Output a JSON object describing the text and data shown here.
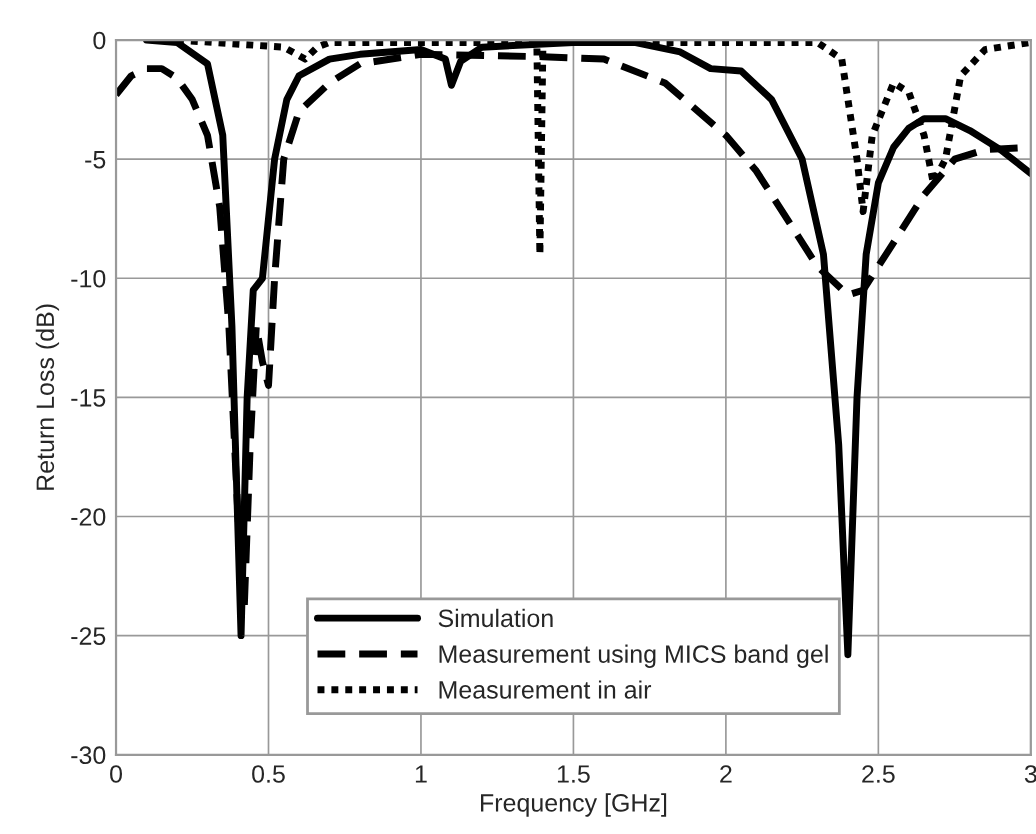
{
  "chart_data": {
    "type": "line",
    "xlabel": "Frequency [GHz]",
    "ylabel": "Return Loss (dB)",
    "xlim": [
      0,
      3
    ],
    "ylim": [
      -30,
      0
    ],
    "xticks": [
      0,
      0.5,
      1,
      1.5,
      2,
      2.5,
      3
    ],
    "yticks": [
      -30,
      -25,
      -20,
      -15,
      -10,
      -5,
      0
    ],
    "grid": true,
    "legend": "bottom",
    "series": [
      {
        "name": "Simulation",
        "color": "#000000",
        "line_style": "solid",
        "x": [
          0.1,
          0.2,
          0.3,
          0.35,
          0.38,
          0.41,
          0.43,
          0.45,
          0.48,
          0.52,
          0.56,
          0.6,
          0.7,
          0.8,
          1.0,
          1.08,
          1.1,
          1.13,
          1.2,
          1.5,
          1.7,
          1.85,
          1.95,
          2.05,
          2.15,
          2.25,
          2.32,
          2.37,
          2.4,
          2.43,
          2.46,
          2.5,
          2.55,
          2.6,
          2.65,
          2.72,
          2.8,
          2.9,
          3.0
        ],
        "values": [
          0,
          -0.1,
          -1,
          -4,
          -12,
          -25,
          -15,
          -10.5,
          -10,
          -5,
          -2.5,
          -1.5,
          -0.8,
          -0.6,
          -0.4,
          -0.8,
          -1.9,
          -0.9,
          -0.3,
          -0.1,
          -0.1,
          -0.5,
          -1.2,
          -1.3,
          -2.5,
          -5,
          -9,
          -17,
          -25.8,
          -15,
          -9,
          -6,
          -4.5,
          -3.7,
          -3.3,
          -3.3,
          -3.8,
          -4.6,
          -5.6
        ]
      },
      {
        "name": "Measurement using MICS band gel",
        "color": "#000000",
        "line_style": "dashed",
        "x": [
          0,
          0.05,
          0.1,
          0.15,
          0.2,
          0.25,
          0.3,
          0.34,
          0.37,
          0.4,
          0.42,
          0.44,
          0.46,
          0.48,
          0.5,
          0.52,
          0.55,
          0.6,
          0.7,
          0.8,
          1.0,
          1.4,
          1.6,
          1.8,
          2.0,
          2.1,
          2.2,
          2.3,
          2.4,
          2.45,
          2.55,
          2.65,
          2.75,
          2.85,
          3.0
        ],
        "values": [
          -2.3,
          -1.5,
          -1.2,
          -1.2,
          -1.6,
          -2.5,
          -4,
          -7,
          -12,
          -20,
          -24,
          -17,
          -12,
          -13.5,
          -14.5,
          -10,
          -5,
          -3,
          -1.8,
          -1,
          -0.6,
          -0.7,
          -0.8,
          -1.8,
          -4,
          -5.5,
          -7.5,
          -9.5,
          -10.7,
          -10.5,
          -8.5,
          -6.5,
          -5,
          -4.6,
          -4.5
        ]
      },
      {
        "name": "Measurement in air",
        "color": "#000000",
        "line_style": "dotted",
        "x": [
          0.2,
          0.55,
          0.62,
          0.66,
          0.7,
          1.0,
          1.38,
          1.39,
          1.4,
          2.3,
          2.38,
          2.43,
          2.45,
          2.48,
          2.55,
          2.6,
          2.65,
          2.68,
          2.72,
          2.77,
          2.85,
          3.0
        ],
        "values": [
          0,
          -0.3,
          -0.8,
          -0.3,
          -0.1,
          -0.1,
          -0.1,
          -9,
          -0.1,
          -0.1,
          -0.8,
          -5,
          -7.2,
          -4,
          -1.8,
          -2.2,
          -4,
          -6,
          -5,
          -1.5,
          -0.4,
          -0.1
        ]
      }
    ]
  }
}
